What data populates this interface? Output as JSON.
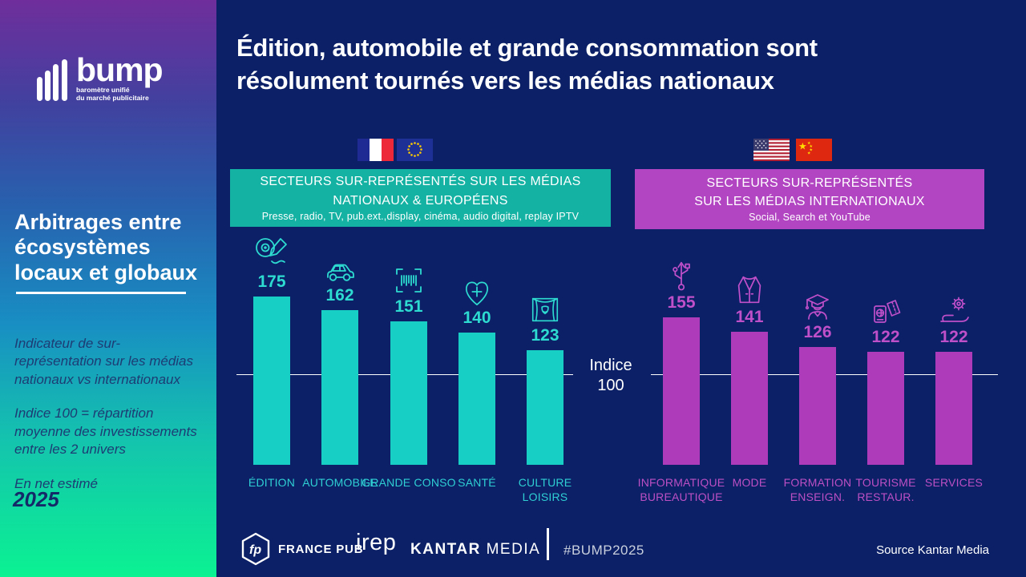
{
  "sidebar": {
    "logo": {
      "name": "bump",
      "tagline_line1": "baromètre unifié",
      "tagline_line2": "du marché publicitaire"
    },
    "title": "Arbitrages entre\nécosystèmes\nlocaux et globaux",
    "notes": [
      "Indicateur de sur-représentation sur les médias nationaux vs internationaux",
      "Indice 100 = répartition moyenne des investissements entre les 2 univers",
      "En net estimé"
    ],
    "year": "2025"
  },
  "header": {
    "title_line1": "Édition, automobile et grande consommation sont",
    "title_line2": "résolument tournés vers les médias nationaux"
  },
  "chart_data": [
    {
      "id": "national",
      "type": "bar",
      "flags": [
        "france-flag",
        "eu-flag"
      ],
      "banner": {
        "line1": "SECTEURS SUR-REPRÉSENTÉS SUR LES MÉDIAS",
        "line2": "NATIONAUX & EUROPÉENS",
        "subtitle": "Presse, radio, TV, pub.ext.,display, cinéma, audio digital, replay IPTV",
        "color": "#14b2a3"
      },
      "categories": [
        "ÉDITION",
        "AUTOMOBILE",
        "GRANDE CONSO",
        "SANTÉ",
        "CULTURE LOISIRS"
      ],
      "icons": [
        "edition-icon",
        "car-icon",
        "barcode-icon",
        "health-icon",
        "theater-icon"
      ],
      "values": [
        175,
        162,
        151,
        140,
        123
      ],
      "baseline": {
        "value": 100,
        "label": "Indice 100"
      },
      "bar_color": "#17cfc4",
      "value_color": "#2edbd0",
      "category_color": "#2fcfd4",
      "ylim": [
        100,
        190
      ],
      "grid": false,
      "legend": false
    },
    {
      "id": "international",
      "type": "bar",
      "flags": [
        "usa-flag",
        "china-flag"
      ],
      "banner": {
        "line1": "SECTEURS SUR-REPRÉSENTÉS",
        "line2": "SUR LES MÉDIAS INTERNATIONAUX",
        "subtitle": "Social, Search et YouTube",
        "color": "#b246c2"
      },
      "categories": [
        "INFORMATIQUE BUREAUTIQUE",
        "MODE",
        "FORMATION ENSEIGN.",
        "TOURISME RESTAUR.",
        "SERVICES"
      ],
      "icons": [
        "usb-icon",
        "suit-icon",
        "graduation-icon",
        "travel-icon",
        "services-icon"
      ],
      "values": [
        155,
        141,
        126,
        122,
        122
      ],
      "baseline": {
        "value": 100,
        "label": "Indice 100"
      },
      "bar_color": "#ae3bba",
      "value_color": "#c04fca",
      "category_color": "#bd4fc4",
      "ylim": [
        100,
        190
      ],
      "grid": false,
      "legend": false
    }
  ],
  "footer": {
    "fp_monogram": "fp",
    "france_pub": "FRANCE PUB",
    "irep": "irep",
    "kantar_bold": "KANTAR",
    "kantar_light": "MEDIA",
    "hashtag": "#BUMP2025",
    "source": "Source Kantar Media"
  }
}
